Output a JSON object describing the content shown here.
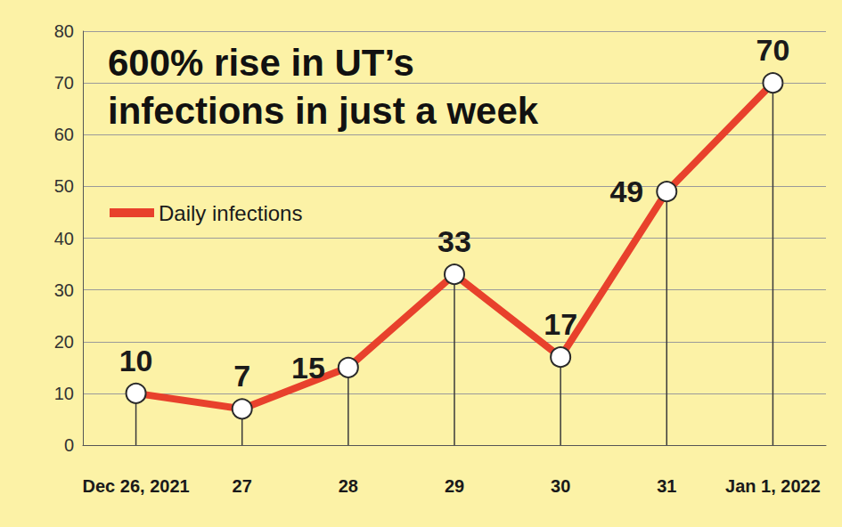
{
  "chart_data": {
    "type": "line",
    "title": "600% rise in UT’s infections in just a week",
    "categories": [
      "Dec 26, 2021",
      "27",
      "28",
      "29",
      "30",
      "31",
      "Jan 1, 2022"
    ],
    "series": [
      {
        "name": "Daily infections",
        "color": "#e8412c",
        "values": [
          10,
          7,
          15,
          33,
          17,
          49,
          70
        ],
        "marker": "circle",
        "line_style": "solid"
      }
    ],
    "ylim": [
      0,
      80
    ],
    "yticks": [
      0,
      10,
      20,
      30,
      40,
      50,
      60,
      70,
      80
    ],
    "grid": true,
    "legend": "upper left",
    "data_labels": true
  }
}
